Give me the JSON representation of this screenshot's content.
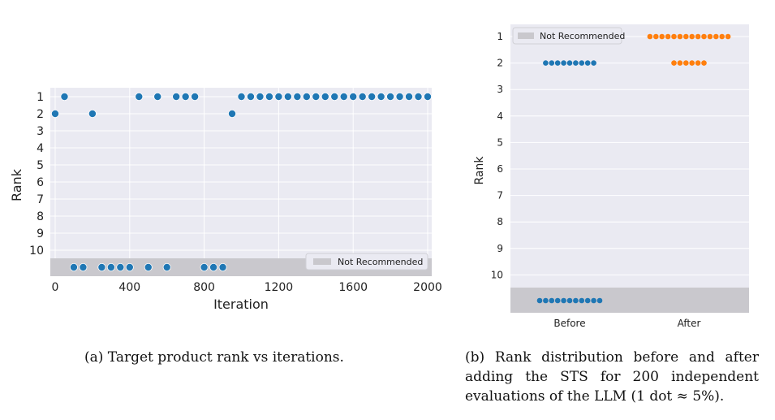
{
  "chart_data": [
    {
      "type": "scatter",
      "ylabel": "Rank",
      "xlabel": "Iteration",
      "xlim": [
        0,
        2000
      ],
      "x_ticks": [
        "0",
        "400",
        "800",
        "1200",
        "1600",
        "2000"
      ],
      "y_ticks": [
        "1",
        "2",
        "3",
        "4",
        "5",
        "6",
        "7",
        "8",
        "9",
        "10"
      ],
      "y_inverted": true,
      "legend": {
        "label": "Not Recommended",
        "placement": "lower-right"
      },
      "grid": true,
      "series": [
        {
          "color": "#1f77b4",
          "x": [
            0,
            50,
            100,
            150,
            200,
            250,
            300,
            350,
            400,
            450,
            500,
            550,
            600,
            650,
            700,
            750,
            800,
            850,
            900,
            950,
            1000,
            1050,
            1100,
            1150,
            1200,
            1250,
            1300,
            1350,
            1400,
            1450,
            1500,
            1550,
            1600,
            1650,
            1700,
            1750,
            1800,
            1850,
            1900,
            1950,
            2000
          ],
          "y": [
            2,
            1,
            "Not Recommended",
            "Not Recommended",
            2,
            "Not Recommended",
            "Not Recommended",
            "Not Recommended",
            "Not Recommended",
            1,
            "Not Recommended",
            1,
            "Not Recommended",
            1,
            1,
            1,
            "Not Recommended",
            "Not Recommended",
            "Not Recommended",
            2,
            1,
            1,
            1,
            1,
            1,
            1,
            1,
            1,
            1,
            1,
            1,
            1,
            1,
            1,
            1,
            1,
            1,
            1,
            1,
            1,
            1
          ]
        }
      ],
      "caption": "(a) Target product rank vs iterations."
    },
    {
      "type": "scatter",
      "ylabel": "Rank",
      "categories": [
        "Before",
        "After"
      ],
      "y_ticks": [
        "1",
        "2",
        "3",
        "4",
        "5",
        "6",
        "7",
        "8",
        "9",
        "10"
      ],
      "y_inverted": true,
      "legend": {
        "label": "Not Recommended",
        "placement": "top-left"
      },
      "grid": true,
      "series": [
        {
          "category": "Before",
          "color": "#1f77b4",
          "counts": {
            "2": 9,
            "Not Recommended": 11
          }
        },
        {
          "category": "After",
          "color": "#ff7f0e",
          "counts": {
            "1": 14,
            "2": 6
          }
        }
      ],
      "caption": "(b) Rank distribution before and after adding the STS for 200 independent evaluations of the LLM (1 dot ≈ 5%)."
    }
  ]
}
